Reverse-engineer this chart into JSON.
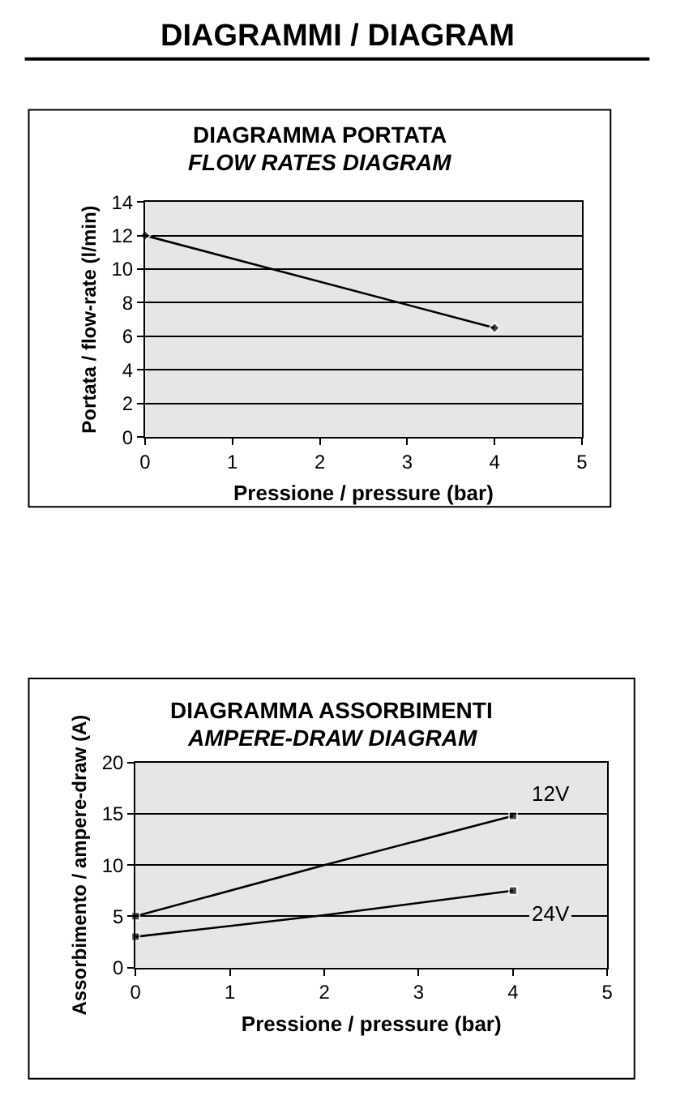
{
  "chart_data": [
    {
      "type": "line",
      "title": "DIAGRAMMA PORTATA",
      "subtitle": "FLOW RATES DIAGRAM",
      "xlabel": "Pressione / pressure (bar)",
      "ylabel": "Portata / flow-rate (l/min)",
      "annotations": [
        "DIAGRAMMI / DIAGRAM"
      ],
      "x": [
        0,
        4
      ],
      "series": [
        {
          "color": "#000000",
          "values": [
            12,
            6.5
          ]
        }
      ],
      "xlim": [
        0,
        5
      ],
      "xticks": [
        0,
        1,
        2,
        3,
        4,
        5
      ],
      "ylim": [
        0,
        14
      ],
      "yticks": [
        0,
        2,
        4,
        6,
        8,
        10,
        12,
        14
      ],
      "grid": "y",
      "legend": false,
      "marker": "diamond",
      "line_style": "solid"
    },
    {
      "type": "line",
      "title": "DIAGRAMMA ASSORBIMENTI",
      "subtitle": "AMPERE-DRAW DIAGRAM",
      "xlabel": "Pressione / pressure (bar)",
      "ylabel": "Assorbimento / ampere-draw (A)",
      "x": [
        0,
        2,
        4
      ],
      "series": [
        {
          "name": "12V",
          "color": "#000000",
          "values": [
            5,
            10,
            14.8
          ]
        },
        {
          "name": "24V",
          "color": "#000000",
          "values": [
            3,
            5.1,
            7.5
          ]
        }
      ],
      "xlim": [
        0,
        5
      ],
      "xticks": [
        0,
        1,
        2,
        3,
        4,
        5
      ],
      "ylim": [
        0,
        20
      ],
      "yticks": [
        0,
        5,
        10,
        15,
        20
      ],
      "grid": "y",
      "legend": false,
      "marker": "square",
      "line_style": "solid"
    }
  ]
}
